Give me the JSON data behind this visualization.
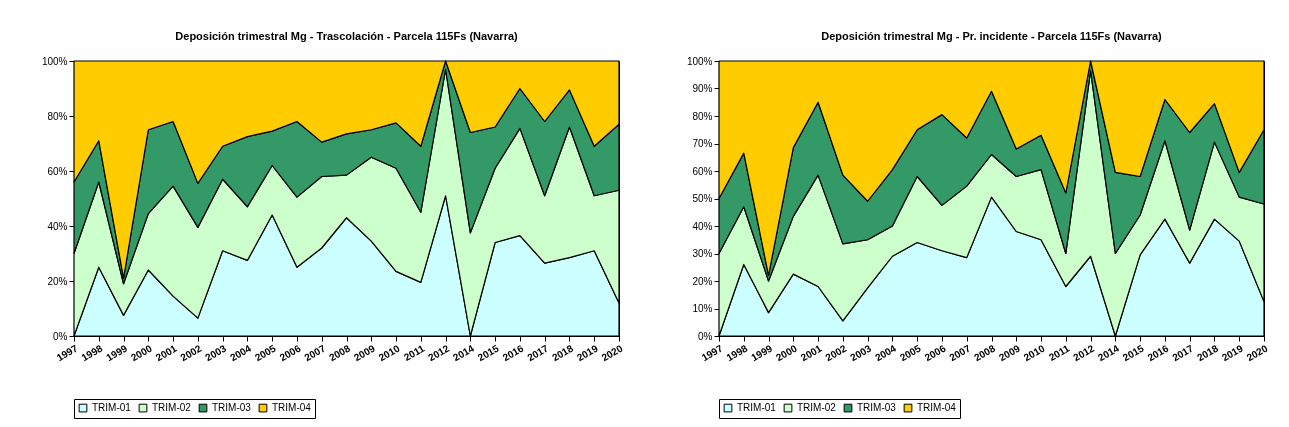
{
  "chart_data": [
    {
      "type": "area",
      "title": "Deposición trimestral Mg - Trascolación - Parcela 115Fs (Navarra)",
      "stacked": true,
      "legend": "bottom",
      "grid": false,
      "categories": [
        "1997",
        "1998",
        "1999",
        "2000",
        "2001",
        "2002",
        "2003",
        "2004",
        "2005",
        "2006",
        "2007",
        "2008",
        "2009",
        "2010",
        "2011",
        "2012",
        "2014",
        "2015",
        "2016",
        "2017",
        "2018",
        "2019",
        "2020"
      ],
      "ylim": [
        0,
        100
      ],
      "yticks": [
        {
          "value": 0,
          "label": "0%"
        },
        {
          "value": 20,
          "label": "20%"
        },
        {
          "value": 40,
          "label": "40%"
        },
        {
          "value": 60,
          "label": "60%"
        },
        {
          "value": 80,
          "label": "80%"
        },
        {
          "value": 100,
          "label": "100%"
        }
      ],
      "series": [
        {
          "name": "TRIM-01",
          "color": "#ccffff",
          "values": [
            0,
            25,
            7.5,
            24,
            14.5,
            6.5,
            31,
            27.5,
            44,
            25,
            32,
            43,
            34.5,
            23.5,
            19.5,
            51,
            0,
            34,
            36.5,
            26.5,
            28.5,
            31,
            12
          ]
        },
        {
          "name": "TRIM-02",
          "color": "#ccffcc",
          "values": [
            30,
            31,
            11.5,
            20.5,
            40,
            33,
            26,
            19.5,
            18,
            25.5,
            26,
            15.5,
            30.5,
            37.5,
            25.5,
            46,
            37.5,
            27,
            39,
            24.5,
            47.5,
            20,
            41
          ]
        },
        {
          "name": "TRIM-03",
          "color": "#339966",
          "values": [
            26,
            15,
            2,
            30.5,
            23.5,
            16,
            12,
            25.5,
            12.5,
            27.5,
            12.5,
            15,
            10,
            16.5,
            24,
            3,
            36.5,
            15,
            14.5,
            27,
            13.5,
            18,
            24
          ]
        },
        {
          "name": "TRIM-04",
          "color": "#ffcc00",
          "values": [
            44,
            29,
            79,
            25,
            22,
            44.5,
            31,
            27.5,
            25.5,
            22,
            29.5,
            26.5,
            25,
            22.5,
            31,
            0,
            26,
            24,
            10,
            22,
            10.5,
            31,
            23
          ]
        }
      ]
    },
    {
      "type": "area",
      "title": "Deposición trimestral Mg - Pr. incidente - Parcela 115Fs (Navarra)",
      "stacked": true,
      "legend": "bottom",
      "grid": false,
      "categories": [
        "1997",
        "1998",
        "1999",
        "2000",
        "2001",
        "2002",
        "2003",
        "2004",
        "2005",
        "2006",
        "2007",
        "2008",
        "2009",
        "2010",
        "2011",
        "2012",
        "2014",
        "2015",
        "2016",
        "2017",
        "2018",
        "2019",
        "2020"
      ],
      "ylim": [
        0,
        100
      ],
      "yticks": [
        {
          "value": 0,
          "label": "0%"
        },
        {
          "value": 10,
          "label": "10%"
        },
        {
          "value": 20,
          "label": "20%"
        },
        {
          "value": 30,
          "label": "30%"
        },
        {
          "value": 40,
          "label": "40%"
        },
        {
          "value": 50,
          "label": "50%"
        },
        {
          "value": 60,
          "label": "60%"
        },
        {
          "value": 70,
          "label": "70%"
        },
        {
          "value": 80,
          "label": "80%"
        },
        {
          "value": 90,
          "label": "90%"
        },
        {
          "value": 100,
          "label": "100%"
        }
      ],
      "series": [
        {
          "name": "TRIM-01",
          "color": "#ccffff",
          "values": [
            0,
            26,
            8.5,
            22.5,
            18,
            5.5,
            17.5,
            29,
            34,
            31,
            28.5,
            50.5,
            38,
            35,
            18,
            29,
            0,
            29.5,
            42.5,
            26.5,
            42.5,
            34.5,
            12.5
          ]
        },
        {
          "name": "TRIM-02",
          "color": "#ccffcc",
          "values": [
            30,
            21,
            11.5,
            21,
            40.5,
            28,
            17.5,
            11,
            24,
            16.5,
            26,
            15.5,
            20,
            25.5,
            12,
            67.5,
            30,
            14.5,
            28.5,
            12,
            28,
            16,
            35.5
          ]
        },
        {
          "name": "TRIM-03",
          "color": "#339966",
          "values": [
            20,
            19.5,
            2,
            25,
            26.5,
            25,
            14,
            20.5,
            17,
            33,
            17.5,
            23,
            10,
            12.5,
            22,
            3.5,
            29.5,
            14,
            15,
            35.5,
            14,
            9,
            27
          ]
        },
        {
          "name": "TRIM-04",
          "color": "#ffcc00",
          "values": [
            50,
            33.5,
            78,
            31.5,
            15,
            41.5,
            51,
            39.5,
            25,
            19.5,
            28,
            11,
            32,
            27,
            48,
            0,
            40.5,
            42,
            14,
            26,
            15.5,
            40.5,
            25
          ]
        }
      ]
    }
  ]
}
